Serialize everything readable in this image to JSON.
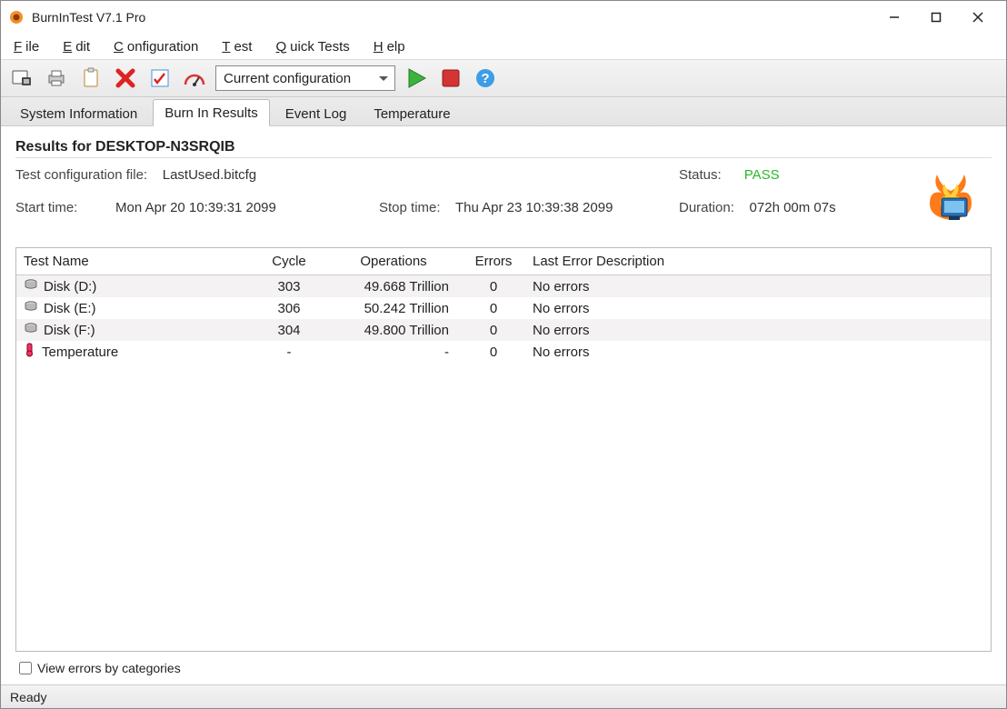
{
  "window": {
    "title": "BurnInTest V7.1 Pro"
  },
  "menu": {
    "file": "File",
    "edit": "Edit",
    "config": "Configuration",
    "test": "Test",
    "quick": "Quick Tests",
    "help": "Help"
  },
  "toolbar": {
    "config_selected": "Current configuration"
  },
  "tabs": {
    "sysinfo": "System Information",
    "results": "Burn In Results",
    "eventlog": "Event Log",
    "temperature": "Temperature"
  },
  "results": {
    "header": "Results for DESKTOP-N3SRQIB",
    "config_label": "Test configuration file:",
    "config_value": "LastUsed.bitcfg",
    "start_label": "Start time:",
    "start_value": "Mon Apr 20 10:39:31 2099",
    "stop_label": "Stop time:",
    "stop_value": "Thu Apr 23 10:39:38 2099",
    "status_label": "Status:",
    "status_value": "PASS",
    "duration_label": "Duration:",
    "duration_value": "072h 00m 07s"
  },
  "columns": {
    "name": "Test Name",
    "cycle": "Cycle",
    "ops": "Operations",
    "errors": "Errors",
    "lastErr": "Last Error Description"
  },
  "rows": [
    {
      "icon": "disk",
      "name": "Disk (D:)",
      "cycle": "303",
      "ops": "49.668 Trillion",
      "errors": "0",
      "lastErr": "No errors"
    },
    {
      "icon": "disk",
      "name": "Disk (E:)",
      "cycle": "306",
      "ops": "50.242 Trillion",
      "errors": "0",
      "lastErr": "No errors"
    },
    {
      "icon": "disk",
      "name": "Disk (F:)",
      "cycle": "304",
      "ops": "49.800 Trillion",
      "errors": "0",
      "lastErr": "No errors"
    },
    {
      "icon": "temp",
      "name": "Temperature",
      "cycle": "-",
      "ops": "-",
      "errors": "0",
      "lastErr": "No errors"
    }
  ],
  "checkbox": {
    "label": "View errors by categories"
  },
  "statusbar": {
    "text": "Ready"
  },
  "colors": {
    "pass": "#2ab82a",
    "row_alt": "#f4f2f2",
    "border": "#bbbbbb"
  }
}
